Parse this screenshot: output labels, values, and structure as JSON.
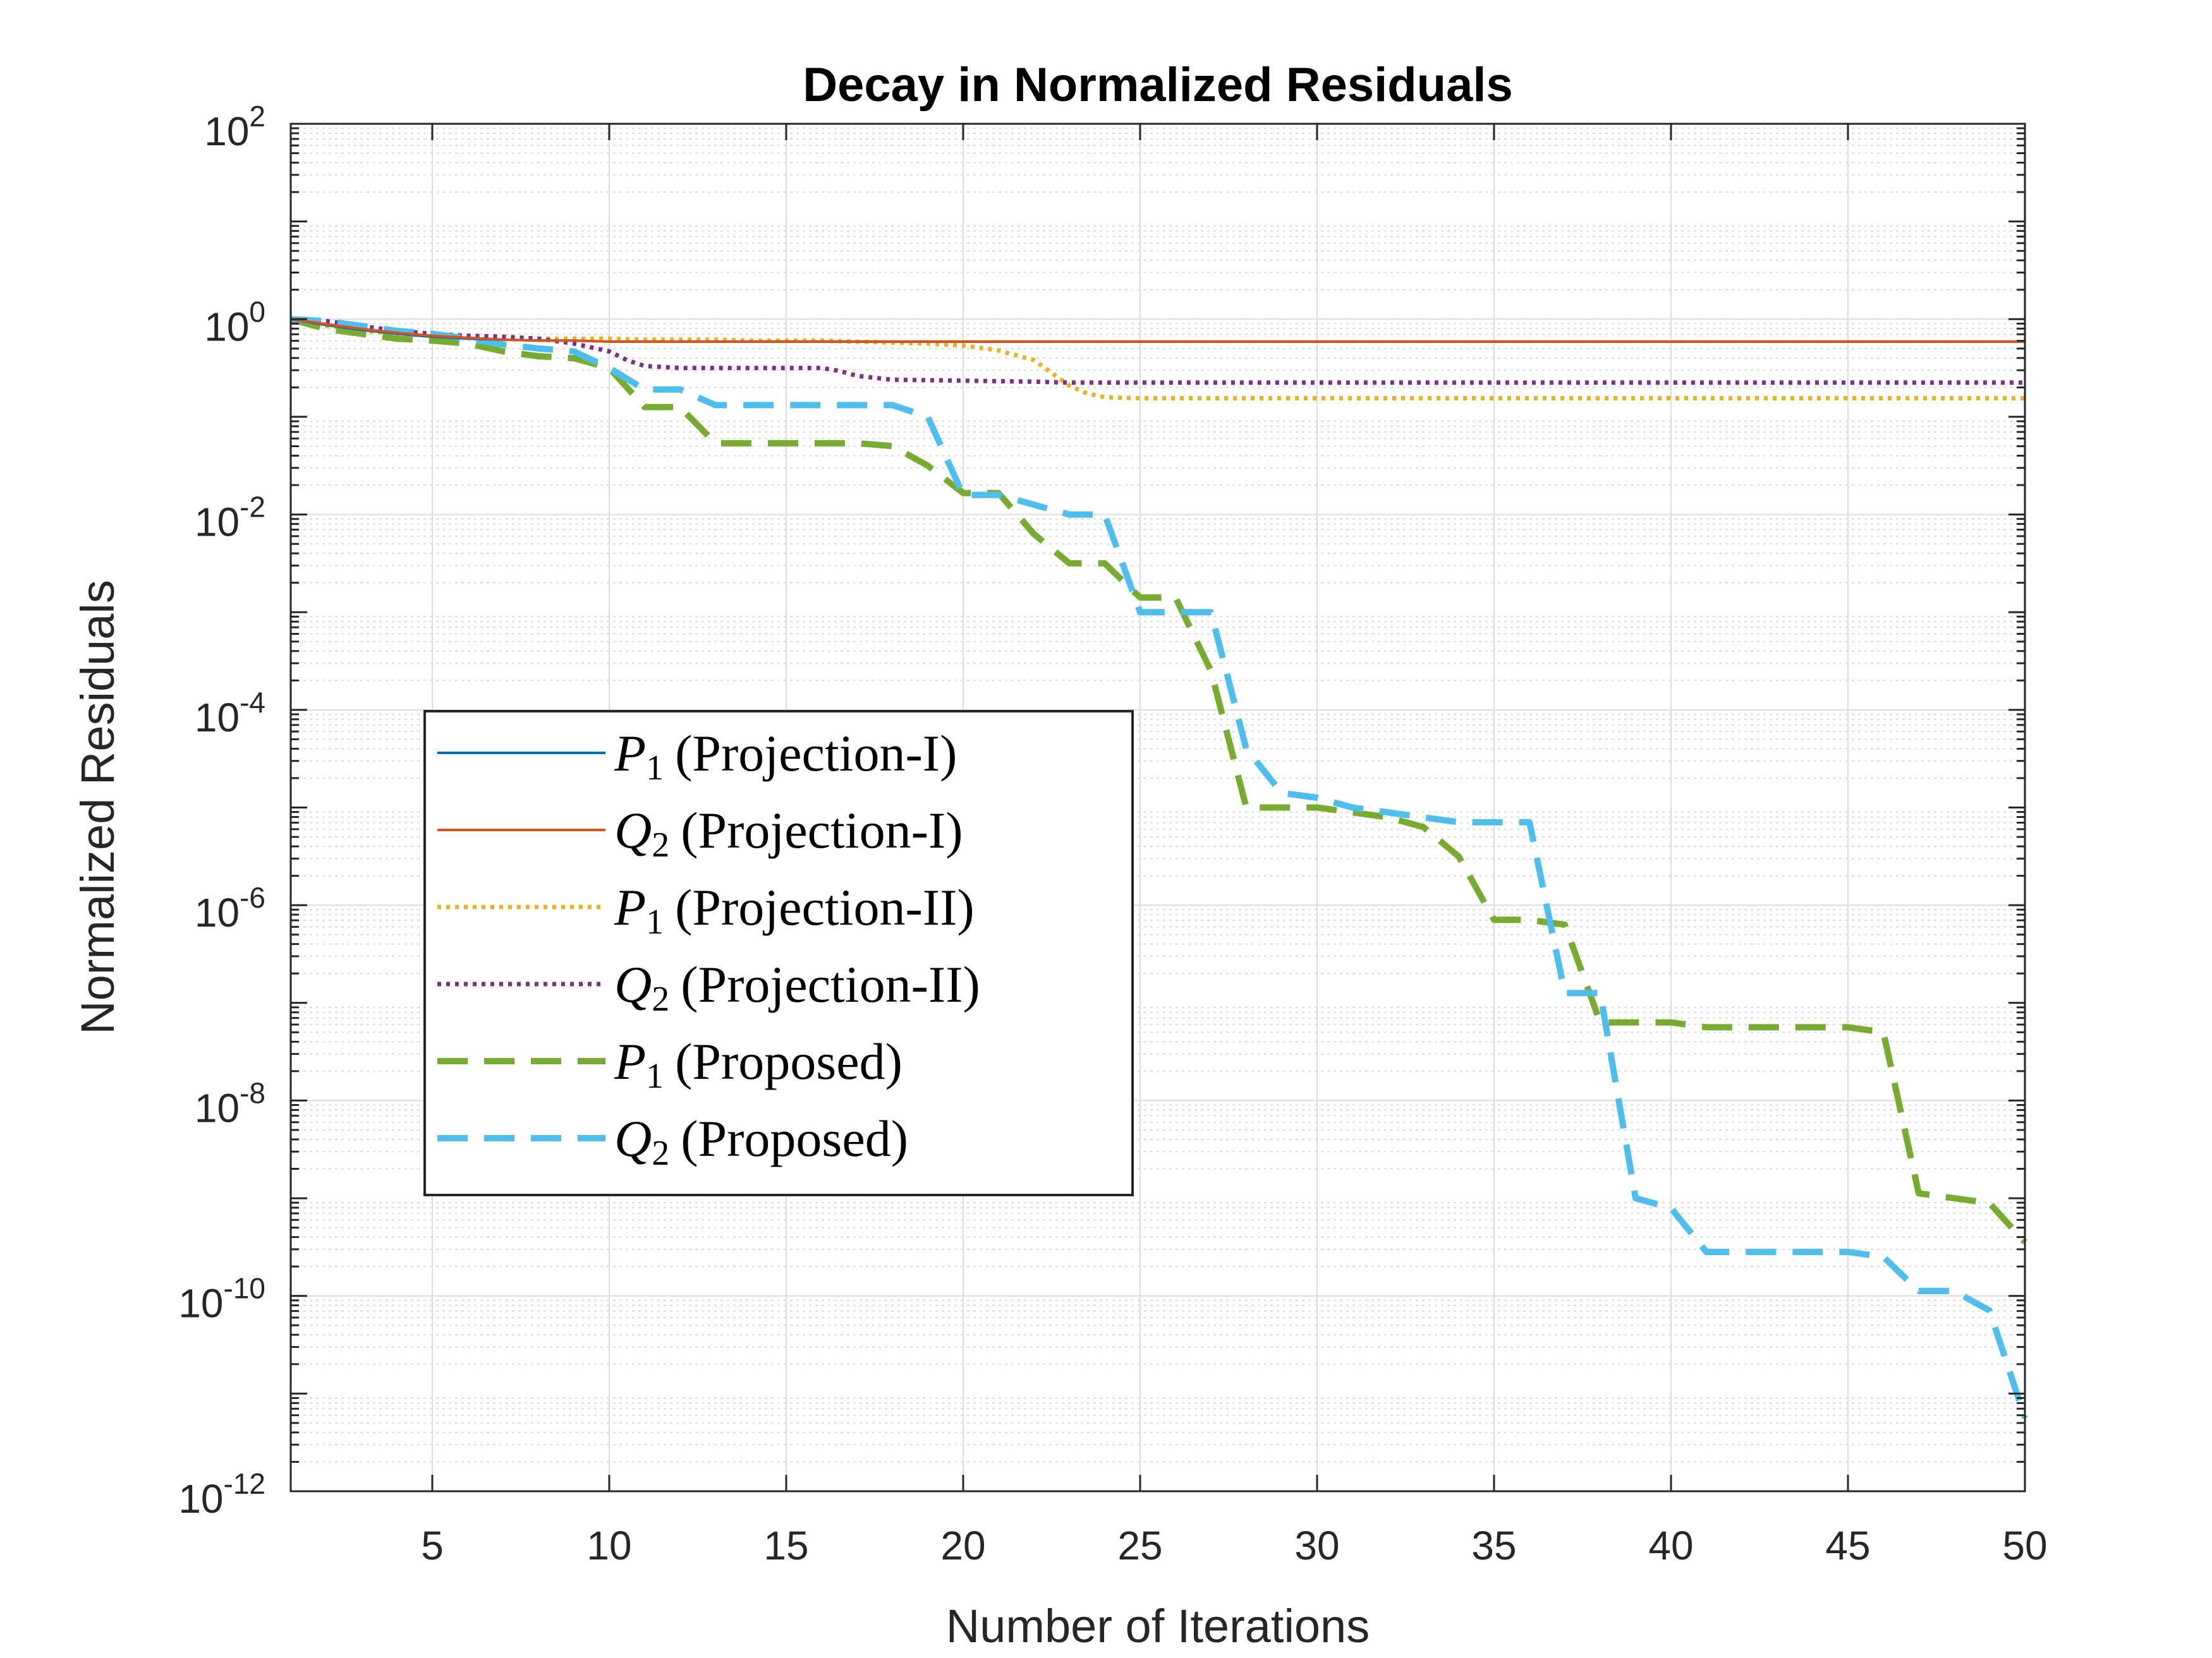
{
  "chart_data": {
    "type": "line",
    "title": "Decay in Normalized Residuals",
    "xlabel": "Number of Iterations",
    "ylabel": "Normalized Residuals",
    "xlim": [
      1,
      50
    ],
    "ylim_log10": [
      -12,
      2
    ],
    "yscale": "log",
    "grid": true,
    "minor_grid": true,
    "legend_position": "lower-left",
    "x_ticks": [
      5,
      10,
      15,
      20,
      25,
      30,
      35,
      40,
      45,
      50
    ],
    "y_tick_exponents": [
      2,
      0,
      -2,
      -4,
      -6,
      -8,
      -10,
      -12
    ],
    "series": [
      {
        "name": "P1 (Projection-I)",
        "symbol": "P",
        "sub": "1",
        "method": "(Projection-I)",
        "color": "#0072BD",
        "style": "solid",
        "x": [
          1,
          2,
          3,
          4,
          5,
          6,
          7,
          8,
          9,
          10,
          12,
          15,
          20,
          25,
          30,
          35,
          40,
          45,
          50
        ],
        "log10_values": [
          0,
          -0.06,
          -0.11,
          -0.15,
          -0.18,
          -0.2,
          -0.21,
          -0.22,
          -0.22,
          -0.23,
          -0.23,
          -0.23,
          -0.23,
          -0.23,
          -0.23,
          -0.23,
          -0.23,
          -0.23,
          -0.23
        ]
      },
      {
        "name": "Q2 (Projection-I)",
        "symbol": "Q",
        "sub": "2",
        "method": "(Projection-I)",
        "color": "#D95319",
        "style": "solid",
        "x": [
          1,
          2,
          3,
          4,
          5,
          6,
          7,
          8,
          9,
          10,
          12,
          15,
          20,
          25,
          30,
          35,
          40,
          45,
          50
        ],
        "log10_values": [
          0,
          -0.05,
          -0.1,
          -0.14,
          -0.17,
          -0.19,
          -0.21,
          -0.22,
          -0.22,
          -0.23,
          -0.23,
          -0.23,
          -0.23,
          -0.23,
          -0.23,
          -0.23,
          -0.23,
          -0.23,
          -0.23
        ]
      },
      {
        "name": "P1 (Projection-II)",
        "symbol": "P",
        "sub": "1",
        "method": "(Projection-II)",
        "color": "#EDB120",
        "style": "dotted",
        "x": [
          1,
          2,
          3,
          4,
          5,
          6,
          7,
          8,
          9,
          10,
          11,
          12,
          13,
          14,
          15,
          16,
          17,
          18,
          19,
          20,
          21,
          22,
          22.5,
          23,
          23.5,
          24,
          25,
          30,
          35,
          40,
          45,
          50
        ],
        "log10_values": [
          0,
          -0.07,
          -0.12,
          -0.15,
          -0.17,
          -0.18,
          -0.19,
          -0.2,
          -0.2,
          -0.2,
          -0.21,
          -0.21,
          -0.21,
          -0.22,
          -0.22,
          -0.22,
          -0.23,
          -0.24,
          -0.25,
          -0.27,
          -0.32,
          -0.42,
          -0.55,
          -0.68,
          -0.76,
          -0.8,
          -0.81,
          -0.81,
          -0.81,
          -0.81,
          -0.81,
          -0.81
        ]
      },
      {
        "name": "Q2 (Projection-II)",
        "symbol": "Q",
        "sub": "2",
        "method": "(Projection-II)",
        "color": "#7E2F8E",
        "style": "dotted",
        "x": [
          1,
          2,
          3,
          4,
          5,
          6,
          7,
          8,
          9,
          10,
          10.5,
          11,
          12,
          13,
          14,
          15,
          16,
          16.5,
          17,
          17.5,
          18,
          20,
          22,
          23,
          24,
          25,
          30,
          35,
          40,
          45,
          50
        ],
        "log10_values": [
          0,
          -0.02,
          -0.07,
          -0.12,
          -0.15,
          -0.17,
          -0.18,
          -0.2,
          -0.25,
          -0.33,
          -0.42,
          -0.48,
          -0.5,
          -0.5,
          -0.5,
          -0.5,
          -0.5,
          -0.53,
          -0.58,
          -0.6,
          -0.62,
          -0.63,
          -0.64,
          -0.65,
          -0.65,
          -0.65,
          -0.65,
          -0.65,
          -0.65,
          -0.65,
          -0.65
        ]
      },
      {
        "name": "P1 (Proposed)",
        "symbol": "P",
        "sub": "1",
        "method": "(Proposed)",
        "color": "#77AC30",
        "style": "dashed",
        "x": [
          1,
          2,
          3,
          4,
          5,
          6,
          7,
          8,
          9,
          10,
          11,
          12,
          13,
          14,
          15,
          16,
          17,
          18,
          19,
          20,
          21,
          22,
          23,
          24,
          25,
          26,
          27,
          28,
          29,
          30,
          31,
          32,
          33,
          34,
          35,
          36,
          37,
          38,
          39,
          40,
          41,
          42,
          43,
          44,
          45,
          46,
          47,
          48,
          49,
          50
        ],
        "log10_values": [
          0,
          -0.1,
          -0.15,
          -0.2,
          -0.22,
          -0.25,
          -0.33,
          -0.38,
          -0.4,
          -0.5,
          -0.9,
          -0.9,
          -1.27,
          -1.27,
          -1.27,
          -1.27,
          -1.27,
          -1.3,
          -1.5,
          -1.78,
          -1.78,
          -2.2,
          -2.5,
          -2.5,
          -2.85,
          -2.85,
          -3.6,
          -5.0,
          -5.0,
          -5.0,
          -5.05,
          -5.1,
          -5.2,
          -5.5,
          -6.15,
          -6.15,
          -6.2,
          -7.2,
          -7.2,
          -7.2,
          -7.25,
          -7.25,
          -7.25,
          -7.25,
          -7.25,
          -7.3,
          -8.95,
          -9.0,
          -9.05,
          -9.45
        ]
      },
      {
        "name": "Q2 (Proposed)",
        "symbol": "Q",
        "sub": "2",
        "method": "(Proposed)",
        "color": "#4DBEEE",
        "style": "dashed",
        "x": [
          1,
          2,
          3,
          4,
          5,
          6,
          7,
          8,
          9,
          10,
          11,
          12,
          13,
          14,
          15,
          16,
          17,
          18,
          19,
          20,
          21,
          22,
          23,
          24,
          25,
          26,
          27,
          28,
          29,
          30,
          31,
          32,
          33,
          34,
          35,
          36,
          37,
          38,
          39,
          40,
          41,
          42,
          43,
          44,
          45,
          46,
          47,
          48,
          49,
          50
        ],
        "log10_values": [
          0,
          -0.02,
          -0.07,
          -0.12,
          -0.15,
          -0.2,
          -0.26,
          -0.3,
          -0.33,
          -0.5,
          -0.72,
          -0.72,
          -0.88,
          -0.88,
          -0.88,
          -0.88,
          -0.88,
          -0.88,
          -1.0,
          -1.8,
          -1.8,
          -1.9,
          -2.0,
          -2.0,
          -3.0,
          -3.0,
          -3.0,
          -4.4,
          -4.85,
          -4.9,
          -5.0,
          -5.05,
          -5.1,
          -5.15,
          -5.15,
          -5.15,
          -6.9,
          -6.9,
          -9.0,
          -9.1,
          -9.55,
          -9.55,
          -9.55,
          -9.55,
          -9.55,
          -9.6,
          -9.95,
          -9.95,
          -10.15,
          -11.25
        ]
      }
    ]
  }
}
